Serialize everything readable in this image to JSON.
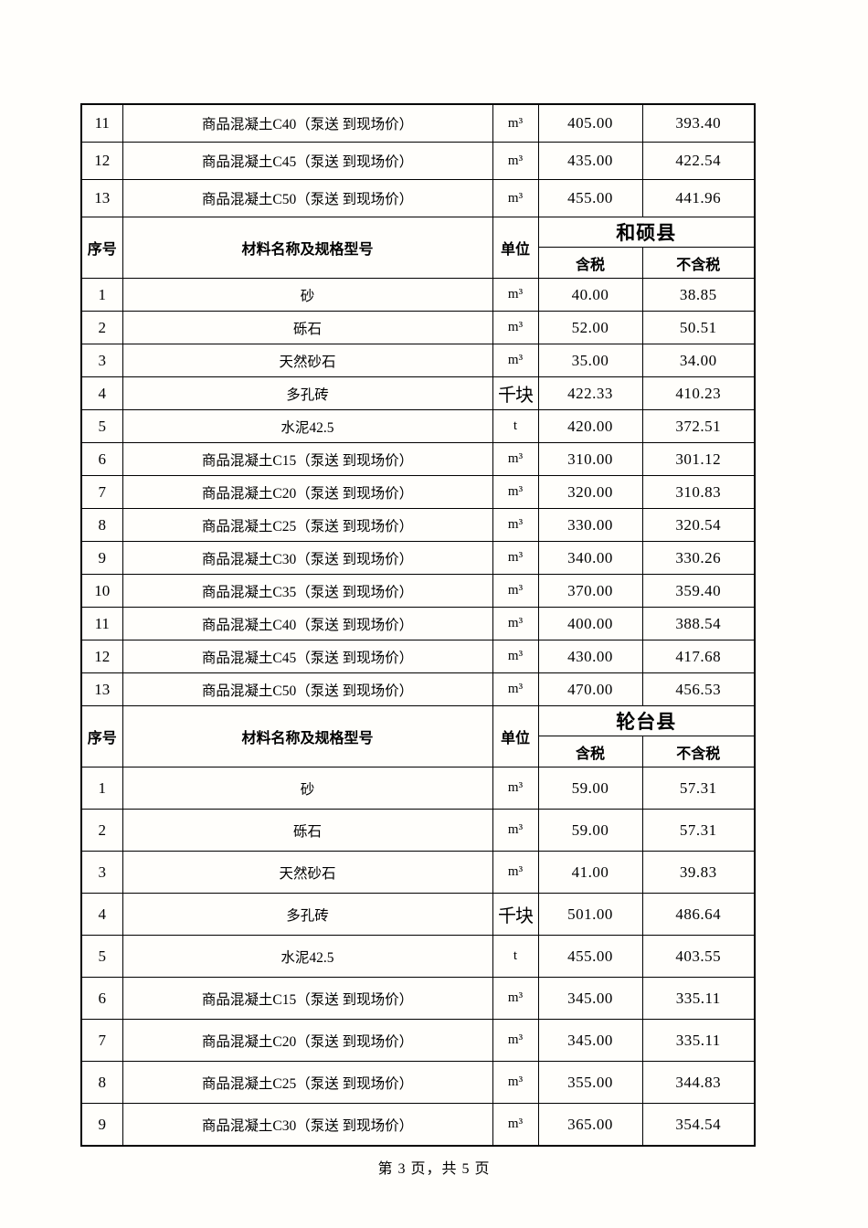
{
  "page": {
    "footer": "第 3 页，共 5 页",
    "background_color": "#fffefb",
    "border_color": "#000000",
    "text_color": "#000000"
  },
  "table": {
    "columns": {
      "seq": "序号",
      "name": "材料名称及规格型号",
      "unit": "单位",
      "tax": "含税",
      "no_tax": "不含税"
    },
    "sections": [
      {
        "county": null,
        "rows": [
          {
            "seq": "11",
            "name": "商品混凝土C40（泵送 到现场价）",
            "unit": "m³",
            "tax": "405.00",
            "no_tax": "393.40"
          },
          {
            "seq": "12",
            "name": "商品混凝土C45（泵送 到现场价）",
            "unit": "m³",
            "tax": "435.00",
            "no_tax": "422.54"
          },
          {
            "seq": "13",
            "name": "商品混凝土C50（泵送 到现场价）",
            "unit": "m³",
            "tax": "455.00",
            "no_tax": "441.96"
          }
        ]
      },
      {
        "county": "和硕县",
        "rows": [
          {
            "seq": "1",
            "name": "砂",
            "unit": "m³",
            "tax": "40.00",
            "no_tax": "38.85"
          },
          {
            "seq": "2",
            "name": "砾石",
            "unit": "m³",
            "tax": "52.00",
            "no_tax": "50.51"
          },
          {
            "seq": "3",
            "name": "天然砂石",
            "unit": "m³",
            "tax": "35.00",
            "no_tax": "34.00"
          },
          {
            "seq": "4",
            "name": "多孔砖",
            "unit": "千块",
            "tax": "422.33",
            "no_tax": "410.23"
          },
          {
            "seq": "5",
            "name": "水泥42.5",
            "unit": "t",
            "tax": "420.00",
            "no_tax": "372.51"
          },
          {
            "seq": "6",
            "name": "商品混凝土C15（泵送 到现场价）",
            "unit": "m³",
            "tax": "310.00",
            "no_tax": "301.12"
          },
          {
            "seq": "7",
            "name": "商品混凝土C20（泵送 到现场价）",
            "unit": "m³",
            "tax": "320.00",
            "no_tax": "310.83"
          },
          {
            "seq": "8",
            "name": "商品混凝土C25（泵送 到现场价）",
            "unit": "m³",
            "tax": "330.00",
            "no_tax": "320.54"
          },
          {
            "seq": "9",
            "name": "商品混凝土C30（泵送 到现场价）",
            "unit": "m³",
            "tax": "340.00",
            "no_tax": "330.26"
          },
          {
            "seq": "10",
            "name": "商品混凝土C35（泵送 到现场价）",
            "unit": "m³",
            "tax": "370.00",
            "no_tax": "359.40"
          },
          {
            "seq": "11",
            "name": "商品混凝土C40（泵送 到现场价）",
            "unit": "m³",
            "tax": "400.00",
            "no_tax": "388.54"
          },
          {
            "seq": "12",
            "name": "商品混凝土C45（泵送 到现场价）",
            "unit": "m³",
            "tax": "430.00",
            "no_tax": "417.68"
          },
          {
            "seq": "13",
            "name": "商品混凝土C50（泵送 到现场价）",
            "unit": "m³",
            "tax": "470.00",
            "no_tax": "456.53"
          }
        ]
      },
      {
        "county": "轮台县",
        "rows": [
          {
            "seq": "1",
            "name": "砂",
            "unit": "m³",
            "tax": "59.00",
            "no_tax": "57.31"
          },
          {
            "seq": "2",
            "name": "砾石",
            "unit": "m³",
            "tax": "59.00",
            "no_tax": "57.31"
          },
          {
            "seq": "3",
            "name": "天然砂石",
            "unit": "m³",
            "tax": "41.00",
            "no_tax": "39.83"
          },
          {
            "seq": "4",
            "name": "多孔砖",
            "unit": "千块",
            "tax": "501.00",
            "no_tax": "486.64"
          },
          {
            "seq": "5",
            "name": "水泥42.5",
            "unit": "t",
            "tax": "455.00",
            "no_tax": "403.55"
          },
          {
            "seq": "6",
            "name": "商品混凝土C15（泵送 到现场价）",
            "unit": "m³",
            "tax": "345.00",
            "no_tax": "335.11"
          },
          {
            "seq": "7",
            "name": "商品混凝土C20（泵送 到现场价）",
            "unit": "m³",
            "tax": "345.00",
            "no_tax": "335.11"
          },
          {
            "seq": "8",
            "name": "商品混凝土C25（泵送 到现场价）",
            "unit": "m³",
            "tax": "355.00",
            "no_tax": "344.83"
          },
          {
            "seq": "9",
            "name": "商品混凝土C30（泵送 到现场价）",
            "unit": "m³",
            "tax": "365.00",
            "no_tax": "354.54"
          }
        ]
      }
    ]
  }
}
